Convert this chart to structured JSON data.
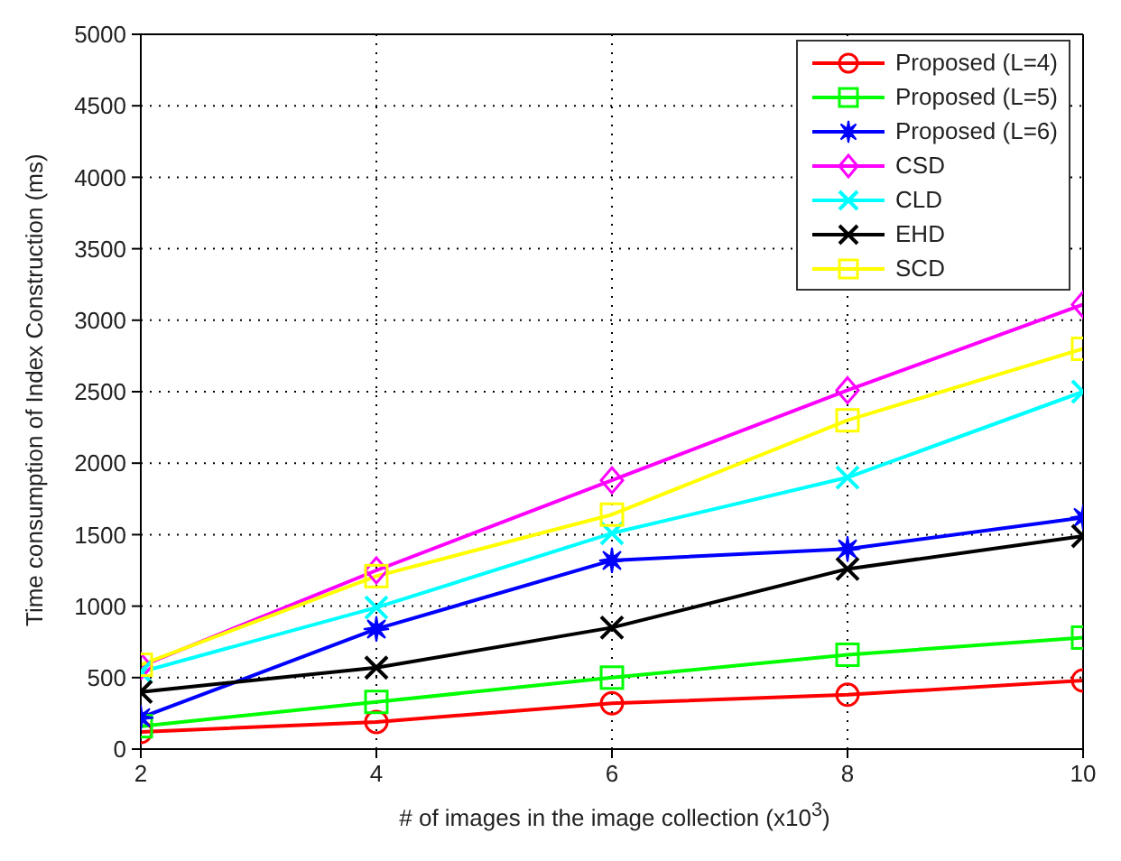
{
  "chart_data": {
    "type": "line",
    "xlabel": "# of images in the image collection (x10$^{3}$)",
    "ylabel": "Time consumption of Index Construction (ms)",
    "x": [
      2,
      4,
      6,
      8,
      10
    ],
    "xlim": [
      2,
      10
    ],
    "xticks": [
      2,
      4,
      6,
      8,
      10
    ],
    "ylim": [
      0,
      5000
    ],
    "yticks": [
      0,
      500,
      1000,
      1500,
      2000,
      2500,
      3000,
      3500,
      4000,
      4500,
      5000
    ],
    "grid": true,
    "legend": "top right",
    "line_style": "solid",
    "series": [
      {
        "name": "Proposed (L=4)",
        "color": "#ff0000",
        "marker": "circle",
        "values": [
          120,
          190,
          320,
          380,
          480
        ]
      },
      {
        "name": "Proposed (L=5)",
        "color": "#00ff00",
        "marker": "square",
        "values": [
          160,
          330,
          500,
          660,
          780
        ]
      },
      {
        "name": "Proposed (L=6)",
        "color": "#0000ff",
        "marker": "star",
        "values": [
          220,
          840,
          1320,
          1400,
          1620
        ]
      },
      {
        "name": "CSD",
        "color": "#ff00ff",
        "marker": "diamond",
        "values": [
          580,
          1250,
          1880,
          2510,
          3110
        ]
      },
      {
        "name": "CLD",
        "color": "#00ffff",
        "marker": "cross",
        "values": [
          540,
          990,
          1510,
          1900,
          2500
        ]
      },
      {
        "name": "EHD",
        "color": "#000000",
        "marker": "cross",
        "values": [
          400,
          570,
          850,
          1260,
          1490
        ]
      },
      {
        "name": "SCD",
        "color": "#ffff00",
        "marker": "square",
        "values": [
          590,
          1210,
          1640,
          2300,
          2800
        ]
      }
    ]
  }
}
